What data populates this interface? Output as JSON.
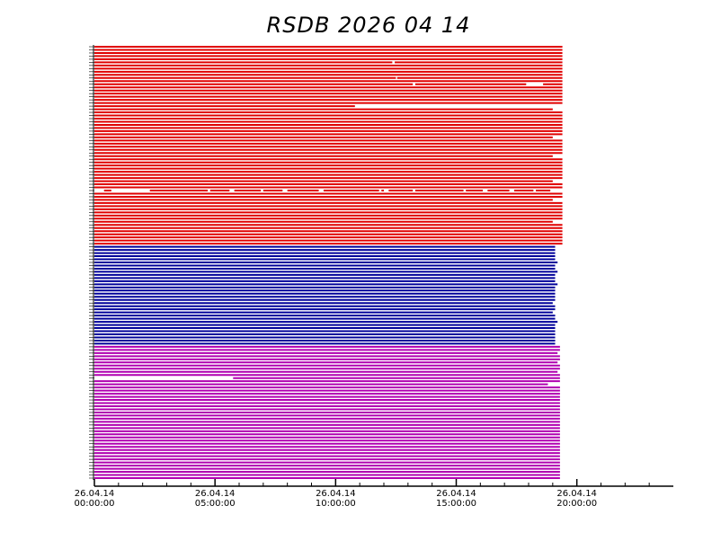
{
  "chart_data": {
    "type": "timeline",
    "title": "RSDB  2026  04  14",
    "xlim": [
      0,
      24
    ],
    "xticks": [
      {
        "value": 0,
        "label": "26.04.14 00:00:00"
      },
      {
        "value": 5,
        "label": "26.04.14 05:00:00"
      },
      {
        "value": 10,
        "label": "26.04.14 10:00:00"
      },
      {
        "value": 15,
        "label": "26.04.14 15:00:00"
      },
      {
        "value": 20,
        "label": "26.04.14 20:00:00"
      }
    ],
    "minor_xticks": [
      1,
      2,
      3,
      4,
      6,
      7,
      8,
      9,
      11,
      12,
      13,
      14,
      16,
      17,
      18,
      19,
      21,
      22,
      23
    ],
    "series": [
      {
        "color": "#e00000",
        "rows": [
          [
            [
              0,
              19.4
            ]
          ],
          [
            [
              0,
              19.4
            ]
          ],
          [
            [
              0,
              19.4
            ]
          ],
          [
            [
              0,
              19.4
            ]
          ],
          [
            [
              0,
              19.4
            ]
          ],
          [
            [
              0,
              12.35
            ],
            [
              12.45,
              19.4
            ]
          ],
          [
            [
              0,
              19.4
            ]
          ],
          [
            [
              0,
              19.4
            ]
          ],
          [
            [
              0,
              19.4
            ]
          ],
          [
            [
              0,
              19.4
            ]
          ],
          [
            [
              0,
              12.5
            ],
            [
              12.55,
              19.4
            ]
          ],
          [
            [
              0,
              19.4
            ]
          ],
          [
            [
              0,
              13.2
            ],
            [
              13.3,
              17.9
            ],
            [
              18.6,
              19.4
            ]
          ],
          [
            [
              0,
              19.4
            ]
          ],
          [
            [
              0,
              19.4
            ]
          ],
          [
            [
              0,
              19.4
            ]
          ],
          [
            [
              0,
              19.4
            ]
          ],
          [
            [
              0,
              19.4
            ]
          ],
          [
            [
              0,
              19.4
            ]
          ],
          [
            [
              0,
              10.8
            ]
          ],
          [
            [
              0,
              19.0
            ]
          ],
          [
            [
              0,
              19.4
            ]
          ],
          [
            [
              0,
              19.4
            ]
          ],
          [
            [
              0,
              19.4
            ]
          ],
          [
            [
              0,
              19.4
            ]
          ],
          [
            [
              0,
              19.4
            ]
          ],
          [
            [
              0,
              19.4
            ]
          ],
          [
            [
              0,
              19.4
            ]
          ],
          [
            [
              0,
              19.4
            ]
          ],
          [
            [
              0,
              19.0
            ]
          ],
          [
            [
              0,
              19.4
            ]
          ],
          [
            [
              0,
              19.4
            ]
          ],
          [
            [
              0,
              19.4
            ]
          ],
          [
            [
              0,
              19.4
            ]
          ],
          [
            [
              0,
              19.4
            ]
          ],
          [
            [
              0,
              19.0
            ]
          ],
          [
            [
              0,
              19.4
            ]
          ],
          [
            [
              0,
              19.4
            ]
          ],
          [
            [
              0,
              19.4
            ]
          ],
          [
            [
              0,
              19.4
            ]
          ],
          [
            [
              0,
              19.4
            ]
          ],
          [
            [
              0,
              19.4
            ]
          ],
          [
            [
              0,
              19.4
            ]
          ],
          [
            [
              0,
              19.0
            ]
          ],
          [
            [
              0,
              19.4
            ]
          ],
          [
            [
              0,
              19.4
            ]
          ],
          [
            [
              0.4,
              0.7
            ],
            [
              2.3,
              4.7
            ],
            [
              4.8,
              5.6
            ],
            [
              5.8,
              6.9
            ],
            [
              7.0,
              7.8
            ],
            [
              8.0,
              9.3
            ],
            [
              9.5,
              11.8
            ],
            [
              11.9,
              12.0
            ],
            [
              12.2,
              13.2
            ],
            [
              13.3,
              15.3
            ],
            [
              15.4,
              16.1
            ],
            [
              16.3,
              17.2
            ],
            [
              17.4,
              18.2
            ],
            [
              18.3,
              18.9
            ]
          ],
          [
            [
              0,
              19.4
            ]
          ],
          [
            [
              0,
              19.4
            ]
          ],
          [
            [
              0,
              19.0
            ]
          ],
          [
            [
              0,
              19.4
            ]
          ],
          [
            [
              0,
              19.4
            ]
          ],
          [
            [
              0,
              19.4
            ]
          ],
          [
            [
              0,
              19.4
            ]
          ],
          [
            [
              0,
              19.4
            ]
          ],
          [
            [
              0,
              19.4
            ]
          ],
          [
            [
              0,
              19.0
            ]
          ],
          [
            [
              0,
              19.4
            ]
          ],
          [
            [
              0,
              19.4
            ]
          ],
          [
            [
              0,
              19.4
            ]
          ],
          [
            [
              0,
              19.4
            ]
          ],
          [
            [
              0,
              19.4
            ]
          ],
          [
            [
              0,
              19.4
            ]
          ],
          [
            [
              0,
              19.4
            ]
          ]
        ]
      },
      {
        "color": "#00009a",
        "rows": [
          [
            [
              0,
              19.1
            ]
          ],
          [
            [
              0,
              19.1
            ]
          ],
          [
            [
              0,
              19.1
            ]
          ],
          [
            [
              0,
              19.1
            ]
          ],
          [
            [
              0,
              19.1
            ]
          ],
          [
            [
              0,
              19.2
            ]
          ],
          [
            [
              0,
              19.1
            ]
          ],
          [
            [
              0,
              19.1
            ]
          ],
          [
            [
              0,
              19.2
            ]
          ],
          [
            [
              0,
              19.1
            ]
          ],
          [
            [
              0,
              19.1
            ]
          ],
          [
            [
              0,
              19.1
            ]
          ],
          [
            [
              0,
              19.2
            ]
          ],
          [
            [
              0,
              19.1
            ]
          ],
          [
            [
              0,
              19.1
            ]
          ],
          [
            [
              0,
              19.1
            ]
          ],
          [
            [
              0,
              19.1
            ]
          ],
          [
            [
              0,
              19.1
            ]
          ],
          [
            [
              0,
              19.0
            ]
          ],
          [
            [
              0,
              19.1
            ]
          ],
          [
            [
              0,
              19.1
            ]
          ],
          [
            [
              0,
              19.0
            ]
          ],
          [
            [
              0,
              19.1
            ]
          ],
          [
            [
              0,
              19.1
            ]
          ],
          [
            [
              0,
              19.2
            ]
          ],
          [
            [
              0,
              19.1
            ]
          ],
          [
            [
              0,
              19.1
            ]
          ],
          [
            [
              0,
              19.1
            ]
          ],
          [
            [
              0,
              19.1
            ]
          ],
          [
            [
              0,
              19.1
            ]
          ],
          [
            [
              0,
              19.1
            ]
          ],
          [
            [
              0,
              19.1
            ]
          ]
        ]
      },
      {
        "color": "#b000b0",
        "rows": [
          [
            [
              0,
              19.3
            ]
          ],
          [
            [
              0,
              19.3
            ]
          ],
          [
            [
              0,
              19.2
            ]
          ],
          [
            [
              0,
              19.3
            ]
          ],
          [
            [
              0,
              19.3
            ]
          ],
          [
            [
              0,
              19.2
            ]
          ],
          [
            [
              0,
              19.3
            ]
          ],
          [
            [
              0,
              19.3
            ]
          ],
          [
            [
              0,
              19.2
            ]
          ],
          [
            [
              0,
              19.3
            ]
          ],
          [
            [
              5.75,
              19.3
            ]
          ],
          [
            [
              0,
              19.3
            ]
          ],
          [
            [
              0,
              18.8
            ]
          ],
          [
            [
              0,
              19.3
            ]
          ],
          [
            [
              0,
              19.3
            ]
          ],
          [
            [
              0,
              19.3
            ]
          ],
          [
            [
              0,
              19.3
            ]
          ],
          [
            [
              0,
              19.3
            ]
          ],
          [
            [
              0,
              19.3
            ]
          ],
          [
            [
              0,
              19.3
            ]
          ],
          [
            [
              0,
              19.3
            ]
          ],
          [
            [
              0,
              19.3
            ]
          ],
          [
            [
              0,
              19.3
            ]
          ],
          [
            [
              0,
              19.3
            ]
          ],
          [
            [
              0,
              19.3
            ]
          ],
          [
            [
              0,
              19.3
            ]
          ],
          [
            [
              0,
              19.3
            ]
          ],
          [
            [
              0,
              19.3
            ]
          ],
          [
            [
              0,
              19.3
            ]
          ],
          [
            [
              0,
              19.3
            ]
          ],
          [
            [
              0,
              19.3
            ]
          ],
          [
            [
              0,
              19.3
            ]
          ],
          [
            [
              0,
              19.3
            ]
          ],
          [
            [
              0,
              19.3
            ]
          ],
          [
            [
              0,
              19.3
            ]
          ],
          [
            [
              0,
              19.3
            ]
          ],
          [
            [
              0,
              19.3
            ]
          ],
          [
            [
              0,
              19.3
            ]
          ],
          [
            [
              0,
              19.3
            ]
          ],
          [
            [
              0,
              19.3
            ]
          ],
          [
            [
              0,
              19.3
            ]
          ],
          [
            [
              0,
              19.3
            ]
          ],
          [
            [
              0,
              19.3
            ]
          ]
        ]
      }
    ]
  }
}
